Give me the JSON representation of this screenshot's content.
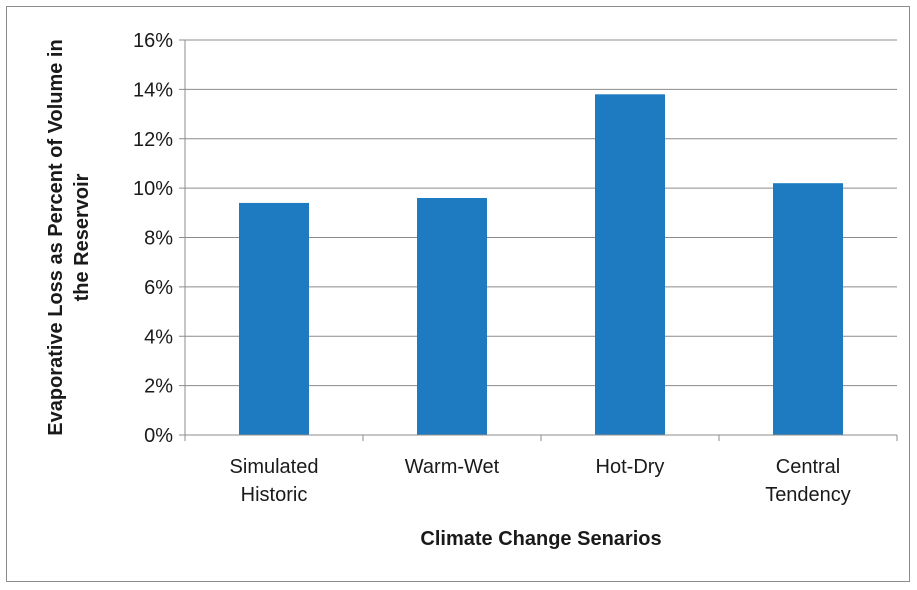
{
  "chart_data": {
    "type": "bar",
    "categories": [
      [
        "Simulated",
        "Historic"
      ],
      [
        "Warm-Wet"
      ],
      [
        "Hot-Dry"
      ],
      [
        "Central",
        "Tendency"
      ]
    ],
    "values": [
      9.4,
      9.6,
      13.8,
      10.2
    ],
    "y_ticks": [
      "0%",
      "2%",
      "4%",
      "6%",
      "8%",
      "10%",
      "12%",
      "14%",
      "16%"
    ],
    "ylim": [
      0,
      16
    ],
    "xlabel": "Climate Change Senarios",
    "ylabel": [
      "Evaporative Loss as Percent of Volume in",
      "the Reservoir"
    ],
    "grid": true,
    "legend": "none",
    "bar_color": "#1f7bc1",
    "grid_color": "#8c8c8c"
  }
}
